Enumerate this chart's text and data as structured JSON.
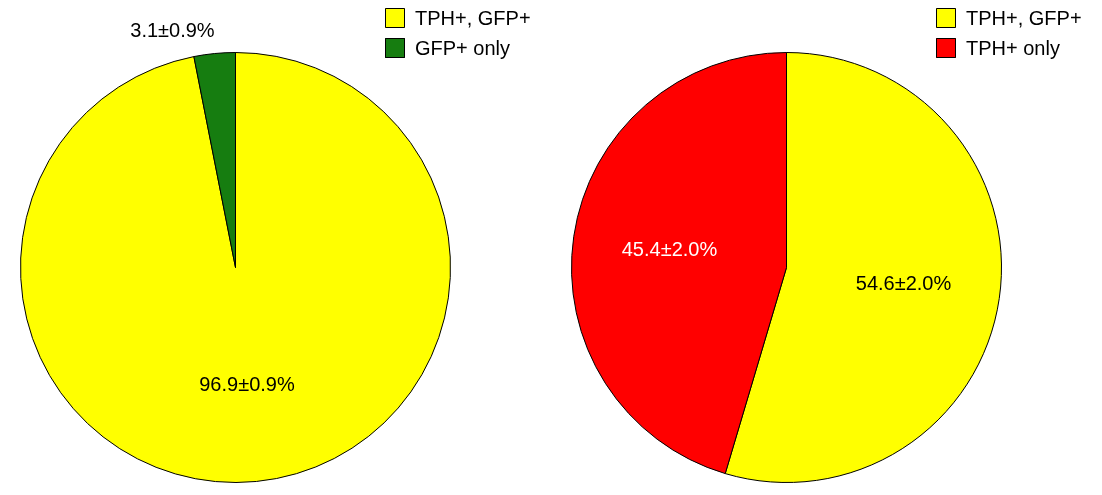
{
  "chart_data": [
    {
      "type": "pie",
      "categories": [
        "TPH+, GFP+",
        "GFP+ only"
      ],
      "values": [
        96.9,
        3.1
      ],
      "colors": [
        "#ffff00",
        "#167d10"
      ],
      "value_labels": [
        "96.9±0.9%",
        "3.1±0.9%"
      ],
      "legend": "top right"
    },
    {
      "type": "pie",
      "categories": [
        "TPH+, GFP+",
        "TPH+ only"
      ],
      "values": [
        54.6,
        45.4
      ],
      "colors": [
        "#ffff00",
        "#ff0000"
      ],
      "value_labels": [
        "54.6±2.0%",
        "45.4±2.0%"
      ],
      "legend": "top right"
    }
  ]
}
